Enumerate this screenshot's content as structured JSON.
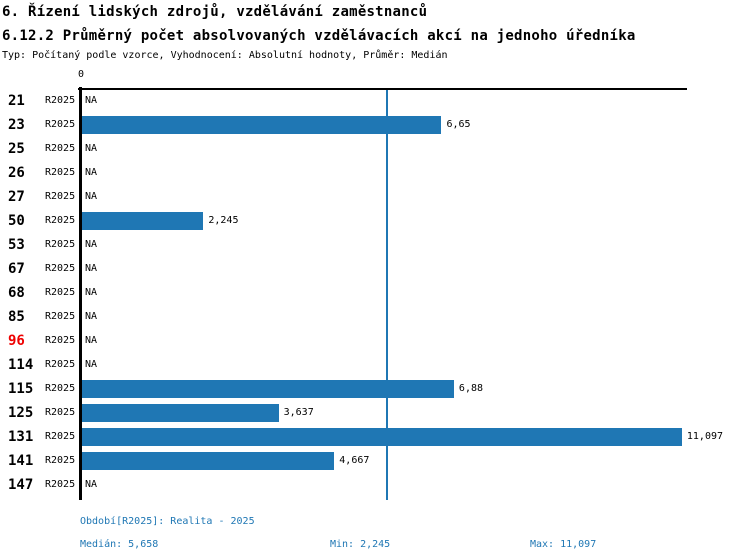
{
  "header": {
    "title": "6. Řízení lidských zdrojů, vzdělávání zaměstnanců",
    "subtitle": "6.12.2 Průměrný počet absolvovaných vzdělávacích akcí na jednoho úředníka",
    "meta": "Typ: Počítaný podle vzorce, Vyhodnocení: Absolutní hodnoty, Průměr: Medián"
  },
  "colors": {
    "bar_blue": "#1f77b4",
    "text_blue": "#1f77b4",
    "alert_red": "#ee0000",
    "axis_black": "#000000",
    "background": "#ffffff"
  },
  "chart_data": {
    "type": "bar",
    "orientation": "horizontal",
    "title": "6.12.2 Průměrný počet absolvovaných vzdělávacích akcí na jednoho úředníka",
    "xlabel": "",
    "ylabel": "",
    "xlim": [
      0,
      11.21
    ],
    "grid": false,
    "zero_label": "0",
    "series_label": "R2025",
    "median_value": 5.658,
    "rows": [
      {
        "id": "21",
        "value": null,
        "label": "NA",
        "highlight": false
      },
      {
        "id": "23",
        "value": 6.65,
        "label": "6,65",
        "highlight": false
      },
      {
        "id": "25",
        "value": null,
        "label": "NA",
        "highlight": false
      },
      {
        "id": "26",
        "value": null,
        "label": "NA",
        "highlight": false
      },
      {
        "id": "27",
        "value": null,
        "label": "NA",
        "highlight": false
      },
      {
        "id": "50",
        "value": 2.245,
        "label": "2,245",
        "highlight": false
      },
      {
        "id": "53",
        "value": null,
        "label": "NA",
        "highlight": false
      },
      {
        "id": "67",
        "value": null,
        "label": "NA",
        "highlight": false
      },
      {
        "id": "68",
        "value": null,
        "label": "NA",
        "highlight": false
      },
      {
        "id": "85",
        "value": null,
        "label": "NA",
        "highlight": false
      },
      {
        "id": "96",
        "value": null,
        "label": "NA",
        "highlight": true
      },
      {
        "id": "114",
        "value": null,
        "label": "NA",
        "highlight": false
      },
      {
        "id": "115",
        "value": 6.88,
        "label": "6,88",
        "highlight": false
      },
      {
        "id": "125",
        "value": 3.637,
        "label": "3,637",
        "highlight": false
      },
      {
        "id": "131",
        "value": 11.097,
        "label": "11,097",
        "highlight": false
      },
      {
        "id": "141",
        "value": 4.667,
        "label": "4,667",
        "highlight": false
      },
      {
        "id": "147",
        "value": null,
        "label": "NA",
        "highlight": false
      }
    ]
  },
  "footer": {
    "period": "Období[R2025]: Realita - 2025",
    "median": "Medián: 5,658",
    "min": "Min: 2,245",
    "max": "Max: 11,097"
  }
}
